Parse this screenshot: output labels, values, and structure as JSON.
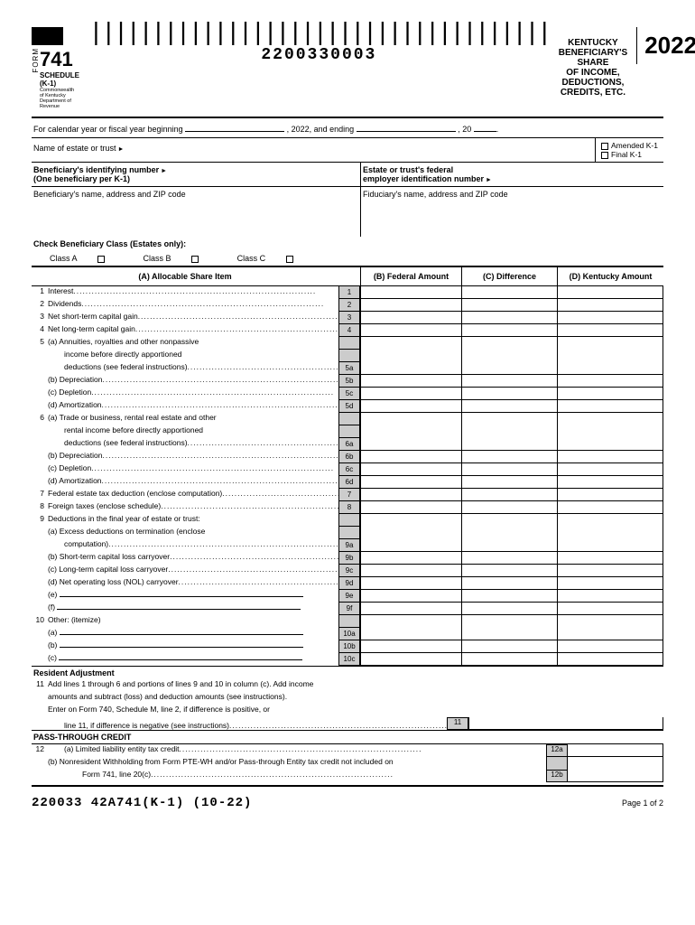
{
  "header": {
    "form_label": "FORM",
    "form_number": "741",
    "schedule": "SCHEDULE (K-1)",
    "dept1": "Commonwealth of Kentucky",
    "dept2": "Department of Revenue",
    "barcode_number": "2200330003",
    "title1": "KENTUCKY BENEFICIARY'S SHARE",
    "title2": "OF INCOME, DEDUCTIONS, CREDITS, ETC.",
    "year": "2022"
  },
  "cal": {
    "prefix": "For calendar year or fiscal year beginning",
    "mid": ", 2022, and ending",
    "suffix": ", 20"
  },
  "name": {
    "label": "Name of estate or trust"
  },
  "checks": {
    "amended": "Amended K-1",
    "final": "Final K-1"
  },
  "ids": {
    "ben_label1": "Beneficiary's identifying number",
    "ben_label2": "(One beneficiary per K-1)",
    "est_label1": "Estate or trust's federal",
    "est_label2": "employer identification number"
  },
  "addr": {
    "ben": "Beneficiary's name, address and ZIP code",
    "fid": "Fiduciary's name, address and ZIP code"
  },
  "class": {
    "hdr": "Check Beneficiary Class (Estates only):",
    "a": "Class A",
    "b": "Class B",
    "c": "Class C"
  },
  "cols": {
    "a": "(A) Allocable Share Item",
    "b": "(B) Federal Amount",
    "c": "(C) Difference",
    "d": "(D) Kentucky Amount"
  },
  "lines": {
    "1": "Interest",
    "2": "Dividends",
    "3": "Net short-term capital gain",
    "4": "Net long-term capital gain",
    "5a1": "(a)  Annuities, royalties and other nonpassive",
    "5a2": "income before directly apportioned",
    "5a3": "deductions (see federal instructions)",
    "5b": "(b)  Depreciation",
    "5c": "(c)  Depletion",
    "5d": "(d)  Amortization",
    "6a1": "(a)  Trade or business, rental real estate and other",
    "6a2": "rental income before directly apportioned",
    "6a3": "deductions (see federal instructions)",
    "6b": "(b)  Depreciation",
    "6c": "(c)  Depletion",
    "6d": "(d)  Amortization",
    "7": "Federal estate tax deduction (enclose computation)",
    "8": "Foreign taxes (enclose schedule)",
    "9": "Deductions in the final year of estate or trust:",
    "9a1": "(a)  Excess deductions on termination (enclose",
    "9a2": "computation)",
    "9b": "(b) Short-term capital loss carryover",
    "9c": "(c) Long-term capital loss carryover",
    "9d": "(d) Net operating loss (NOL) carryover",
    "9e": "(e)",
    "9f": "(f)",
    "10": "Other: (itemize)",
    "10a": "(a)",
    "10b": "(b)",
    "10c": "(c)"
  },
  "resident": {
    "hdr": "Resident Adjustment",
    "11a": "Add lines 1 through 6 and portions of lines 9 and 10 in column (c). Add income",
    "11b": "amounts and subtract (loss) and deduction amounts (see instructions).",
    "11c": "Enter on Form 740, Schedule M, line 2, if difference is positive, or",
    "11d": "line 11, if difference is negative (see instructions)"
  },
  "pass": {
    "hdr": "PASS-THROUGH CREDIT",
    "12a": "(a)   Limited liability entity tax credit",
    "12b1": "(b)   Nonresident Withholding from Form PTE-WH and/or Pass-through Entity tax credit not included on",
    "12b2": "Form 741, line 20(c)"
  },
  "footer": {
    "code": "220033 42A741(K-1) (10-22)",
    "page": "Page 1 of 2"
  }
}
